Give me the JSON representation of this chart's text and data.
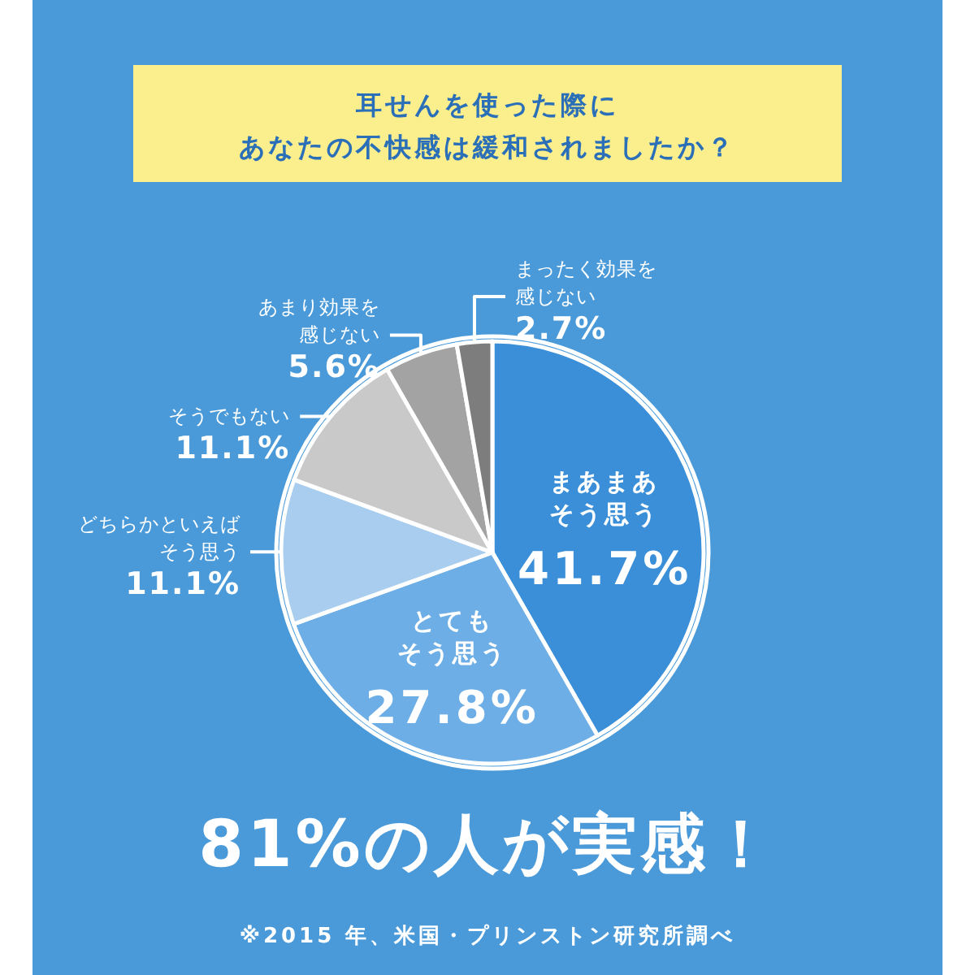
{
  "chart_data": {
    "type": "pie",
    "title": "耳せんを使った際にあなたの不快感は緩和されましたか？",
    "categories": [
      "まあまあそう思う",
      "とてもそう思う",
      "どちらかといえばそう思う",
      "そうでもない",
      "あまり効果を感じない",
      "まったく効果を感じない"
    ],
    "values": [
      41.7,
      27.8,
      11.1,
      11.1,
      5.6,
      2.7
    ],
    "value_labels": [
      "41.7%",
      "27.8%",
      "11.1%",
      "11.1%",
      "5.6%",
      "2.7%"
    ],
    "colors": [
      "#3b8fd8",
      "#6eaee6",
      "#a9cdee",
      "#c9c9c9",
      "#a3a3a3",
      "#7d7d7d"
    ],
    "annotations": [
      "81%の人が実感！",
      "※2015 年、米国・プリンストン研究所調べ"
    ]
  }
}
